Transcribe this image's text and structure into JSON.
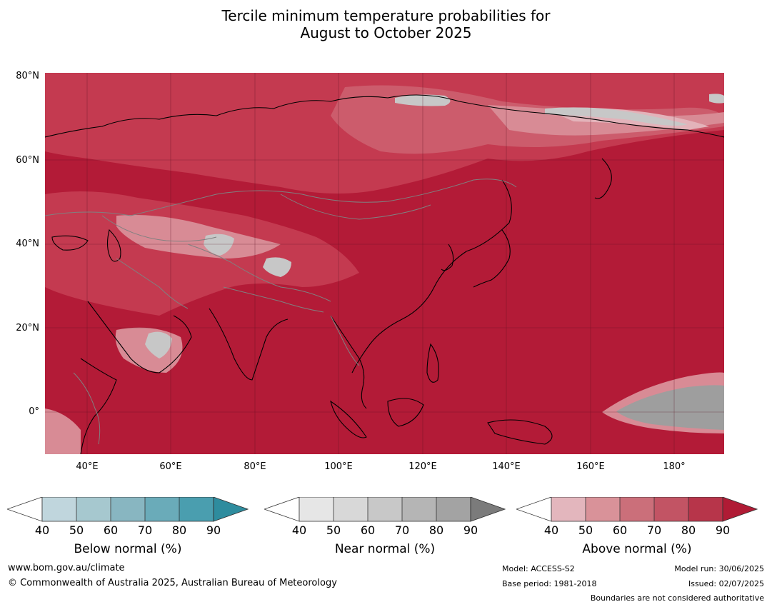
{
  "title_line1": "Tercile minimum temperature probabilities for",
  "title_line2": "August to October 2025",
  "map": {
    "lat_labels": [
      "80°N",
      "60°N",
      "40°N",
      "20°N",
      "0°"
    ],
    "lon_labels": [
      "40°E",
      "60°E",
      "80°E",
      "100°E",
      "120°E",
      "140°E",
      "160°E",
      "180°"
    ],
    "colors": {
      "above_max": "#b31b37",
      "above_80": "#c43a50",
      "above_70": "#cc5c6c",
      "above_60": "#d88b95",
      "above_50": "#e3b3ba",
      "near_90": "#9e9e9e",
      "near_70": "#c7c7c7",
      "coast": "#000000",
      "border": "#808080"
    }
  },
  "colorbars": [
    {
      "id": "below",
      "title": "Below normal (%)",
      "ticks": [
        "40",
        "50",
        "60",
        "70",
        "80",
        "90"
      ],
      "colors": [
        "#ffffff",
        "#c0d6dd",
        "#a6c8cf",
        "#88b6c1",
        "#6aabb9",
        "#4a9eaf",
        "#2e8c9e"
      ]
    },
    {
      "id": "near",
      "title": "Near normal (%)",
      "ticks": [
        "40",
        "50",
        "60",
        "70",
        "80",
        "90"
      ],
      "colors": [
        "#ffffff",
        "#e6e6e6",
        "#d8d8d8",
        "#c8c8c8",
        "#b5b5b5",
        "#a3a3a3",
        "#7b7b7b"
      ]
    },
    {
      "id": "above",
      "title": "Above normal (%)",
      "ticks": [
        "40",
        "50",
        "60",
        "70",
        "80",
        "90"
      ],
      "colors": [
        "#ffffff",
        "#e3b6bd",
        "#d99299",
        "#cb6f7a",
        "#c25464",
        "#b7354a",
        "#b01b35"
      ]
    }
  ],
  "footer": {
    "website": "www.bom.gov.au/climate",
    "copyright": "© Commonwealth of Australia 2025, Australian Bureau of Meteorology",
    "model": "Model: ACCESS-S2",
    "base_period": "Base period: 1981-2018",
    "model_run": "Model run: 30/06/2025",
    "issued": "Issued: 02/07/2025",
    "disclaimer": "Boundaries are not considered authoritative"
  }
}
